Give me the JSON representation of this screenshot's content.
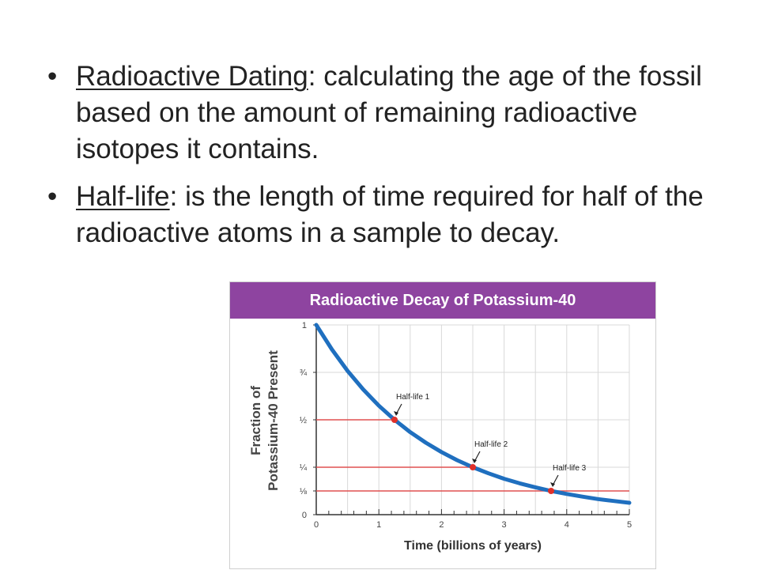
{
  "bullets": [
    {
      "term": "Radioactive Dating",
      "definition": ": calculating the age of the fossil based on the amount of remaining radioactive isotopes it contains."
    },
    {
      "term": "Half-life",
      "definition": ": is the length of time required for half of the radioactive atoms in a sample to decay."
    }
  ],
  "bullet_glyph": "•",
  "chart_data": {
    "type": "line",
    "title": "Radioactive Decay of Potassium-40",
    "xlabel": "Time (billions of years)",
    "ylabel": "Fraction of Potassium-40 Present",
    "ylabel_lines": [
      "Fraction of",
      "Potassium-40 Present"
    ],
    "xlim": [
      0,
      5
    ],
    "ylim": [
      0,
      1
    ],
    "grid": true,
    "x_ticks": [
      0,
      1,
      2,
      3,
      4,
      5
    ],
    "y_ticks": [
      {
        "value": 0,
        "label": "0"
      },
      {
        "value": 0.125,
        "label": "⅛"
      },
      {
        "value": 0.25,
        "label": "¼"
      },
      {
        "value": 0.5,
        "label": "½"
      },
      {
        "value": 0.75,
        "label": "¾"
      },
      {
        "value": 1,
        "label": "1"
      }
    ],
    "half_life": 1.25,
    "series": [
      {
        "x": [
          0,
          0.25,
          0.5,
          0.75,
          1,
          1.25,
          1.5,
          1.75,
          2,
          2.25,
          2.5,
          2.75,
          3,
          3.25,
          3.5,
          3.75,
          4,
          4.25,
          4.5,
          4.75,
          5
        ],
        "values": [
          1,
          0.871,
          0.758,
          0.66,
          0.574,
          0.5,
          0.435,
          0.379,
          0.33,
          0.287,
          0.25,
          0.218,
          0.189,
          0.165,
          0.144,
          0.125,
          0.109,
          0.095,
          0.082,
          0.072,
          0.0625
        ]
      }
    ],
    "annotations": [
      {
        "label": "Half-life 1",
        "x": 1.25,
        "y": 0.5
      },
      {
        "label": "Half-life 2",
        "x": 2.5,
        "y": 0.25
      },
      {
        "label": "Half-life 3",
        "x": 3.75,
        "y": 0.125
      }
    ],
    "colors": {
      "curve": "#1f6fbf",
      "header": "#8e44a0",
      "guide": "#e05050",
      "marker": "#e0302a",
      "grid": "#d8d8d8"
    }
  }
}
